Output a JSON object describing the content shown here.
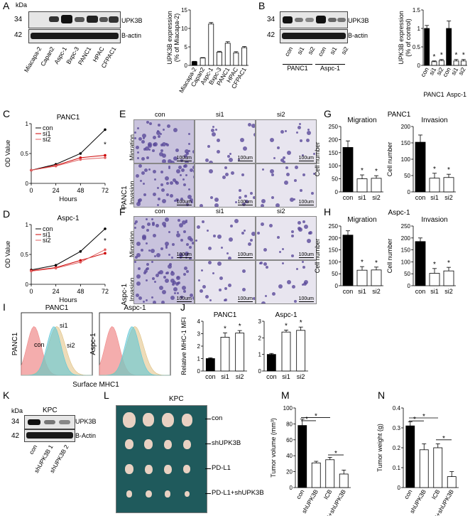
{
  "panels": {
    "A": "A",
    "B": "B",
    "C": "C",
    "D": "D",
    "E": "E",
    "F": "F",
    "G": "G",
    "H": "H",
    "I": "I",
    "J": "J",
    "K": "K",
    "L": "L",
    "M": "M",
    "N": "N"
  },
  "blotA": {
    "kda": "kDa",
    "m34": "34",
    "m42": "42",
    "p1": "UPK3B",
    "p2": "B-actin",
    "lanes": [
      "Miacapa-2",
      "Capan2",
      "Aspc-1",
      "Bxpc-3",
      "PANC1",
      "HPAC",
      "CFPAC1"
    ]
  },
  "blotB": {
    "m34": "34",
    "m42": "42",
    "p1": "UPK3B",
    "p2": "B-actin",
    "lanes": [
      "con",
      "si1",
      "si2",
      "con",
      "si1",
      "si2"
    ],
    "groups": [
      "PANC1",
      "Aspc-1"
    ]
  },
  "blotK": {
    "kda": "kDa",
    "title": "KPC",
    "m34": "34",
    "m42": "42",
    "p1": "UPK3B",
    "p2": "B-Actin",
    "lanes": [
      "con",
      "shUPK3B 1",
      "shUPK3B 2"
    ]
  },
  "micro": {
    "cols": [
      "con",
      "si1",
      "si2"
    ],
    "rowsE": [
      "Migration",
      "Invasion"
    ],
    "cellE": "PANC1",
    "cellF": "Aspc-1",
    "scale": "100um"
  },
  "flow": {
    "titles": [
      "PANC1",
      "Aspc-1"
    ],
    "ylabels": [
      "PANC1",
      "Aspc-1"
    ],
    "xlabel": "Surface MHC1",
    "tags": [
      "con",
      "si1",
      "si2"
    ]
  },
  "photo": {
    "title": "KPC",
    "rows": [
      "con",
      "shUPK3B",
      "PD-L1",
      "PD-L1+shUPK3B"
    ]
  },
  "chart_data": [
    {
      "id": "A",
      "type": "bar",
      "categories": [
        "Miacapa-2",
        "Capan2",
        "Aspc-1",
        "Bxpc-3",
        "PANC1",
        "HPAC",
        "CFPAC1"
      ],
      "values": [
        1,
        2,
        11.2,
        3.6,
        6,
        3.4,
        4.8
      ],
      "errors": [
        0.1,
        0.1,
        0.4,
        0.2,
        0.4,
        0.3,
        0.3
      ],
      "ylabel": "UPK3B expression\n(% of Miacapa-2)",
      "ylim": [
        0,
        15
      ],
      "yticks": [
        0,
        5,
        10,
        15
      ],
      "colors": [
        "#000",
        "#fff",
        "#fff",
        "#fff",
        "#fff",
        "#fff",
        "#fff"
      ]
    },
    {
      "id": "B",
      "type": "bar",
      "categories": [
        "con",
        "si1",
        "si2",
        "con",
        "si1",
        "si2"
      ],
      "groups": [
        "PANC1",
        "Aspc-1"
      ],
      "values": [
        1,
        0.1,
        0.13,
        1,
        0.12,
        0.12
      ],
      "errors": [
        0.08,
        0.02,
        0.03,
        0.2,
        0.04,
        0.04
      ],
      "ylabel": "UPK3B expression\n(% of control)",
      "ylim": [
        0,
        1.5
      ],
      "yticks": [
        0.0,
        0.5,
        1.0,
        1.5
      ],
      "stars": [
        false,
        true,
        true,
        false,
        true,
        true
      ],
      "colors": [
        "#000",
        "#fff",
        "#fff",
        "#000",
        "#fff",
        "#fff"
      ]
    },
    {
      "id": "C",
      "type": "line",
      "title": "PANC1",
      "x": [
        0,
        24,
        48,
        72
      ],
      "xlabel": "Hours",
      "ylabel": "OD Value",
      "ylim": [
        0,
        1
      ],
      "yticks": [
        0,
        0.5,
        1
      ],
      "series": [
        {
          "name": "con",
          "values": [
            0.22,
            0.32,
            0.5,
            0.9
          ]
        },
        {
          "name": "si1",
          "values": [
            0.22,
            0.3,
            0.43,
            0.47
          ]
        },
        {
          "name": "si2",
          "values": [
            0.22,
            0.29,
            0.4,
            0.43
          ]
        }
      ],
      "annotation": "*"
    },
    {
      "id": "D",
      "type": "line",
      "title": "Aspc-1",
      "x": [
        0,
        24,
        48,
        72
      ],
      "xlabel": "Hours",
      "ylabel": "OD Value",
      "ylim": [
        0,
        1
      ],
      "yticks": [
        0,
        0.5,
        1
      ],
      "series": [
        {
          "name": "con",
          "values": [
            0.24,
            0.32,
            0.55,
            0.93
          ]
        },
        {
          "name": "si1",
          "values": [
            0.23,
            0.28,
            0.4,
            0.52
          ]
        },
        {
          "name": "si2",
          "values": [
            0.22,
            0.27,
            0.37,
            0.58
          ]
        }
      ],
      "annotation": "*"
    },
    {
      "id": "G1",
      "type": "bar",
      "group": "PANC1",
      "title": "Migration",
      "categories": [
        "con",
        "si1",
        "si2"
      ],
      "values": [
        170,
        50,
        52
      ],
      "errors": [
        25,
        15,
        10
      ],
      "ylabel": "Cell number",
      "ylim": [
        0,
        250
      ],
      "yticks": [
        0,
        50,
        100,
        150,
        200,
        250
      ],
      "stars": [
        false,
        true,
        true
      ]
    },
    {
      "id": "G2",
      "type": "bar",
      "group": "PANC1",
      "title": "Invasion",
      "categories": [
        "con",
        "si1",
        "si2"
      ],
      "values": [
        152,
        42,
        44
      ],
      "errors": [
        22,
        15,
        10
      ],
      "ylabel": "Cell number",
      "ylim": [
        0,
        200
      ],
      "yticks": [
        0,
        50,
        100,
        150,
        200
      ],
      "stars": [
        false,
        true,
        true
      ]
    },
    {
      "id": "H1",
      "type": "bar",
      "group": "Aspc-1",
      "title": "Migration",
      "categories": [
        "con",
        "si1",
        "si2"
      ],
      "values": [
        212,
        65,
        66
      ],
      "errors": [
        18,
        15,
        12
      ],
      "ylabel": "Cell number",
      "ylim": [
        0,
        250
      ],
      "yticks": [
        0,
        50,
        100,
        150,
        200,
        250
      ],
      "stars": [
        false,
        true,
        true
      ]
    },
    {
      "id": "H2",
      "type": "bar",
      "group": "Aspc-1",
      "title": "Invasion",
      "categories": [
        "con",
        "si1",
        "si2"
      ],
      "values": [
        185,
        52,
        62
      ],
      "errors": [
        15,
        20,
        15
      ],
      "ylabel": "Cell number",
      "ylim": [
        0,
        250
      ],
      "yticks": [
        0,
        50,
        100,
        150,
        200,
        250
      ],
      "stars": [
        false,
        true,
        true
      ]
    },
    {
      "id": "J1",
      "type": "bar",
      "title": "PANC1",
      "categories": [
        "con",
        "si1",
        "si2"
      ],
      "values": [
        1,
        2.72,
        3.05
      ],
      "errors": [
        0.06,
        0.35,
        0.2
      ],
      "ylabel": "Relative MHC-1 MFI",
      "ylim": [
        0,
        4
      ],
      "yticks": [
        0,
        1,
        2,
        3,
        4
      ],
      "stars": [
        false,
        true,
        true
      ]
    },
    {
      "id": "J2",
      "type": "bar",
      "title": "Aspc-1",
      "categories": [
        "con",
        "si1",
        "si2"
      ],
      "values": [
        1,
        2.35,
        2.45
      ],
      "errors": [
        0.06,
        0.12,
        0.2
      ],
      "ylim": [
        0,
        3
      ],
      "yticks": [
        0,
        1,
        2,
        3
      ],
      "stars": [
        false,
        true,
        true
      ]
    },
    {
      "id": "M",
      "type": "bar",
      "categories": [
        "con",
        "shUPK3B",
        "ICB",
        "ICB+shUPK3B"
      ],
      "values": [
        78,
        31,
        35,
        17
      ],
      "errors": [
        8,
        2,
        3,
        5
      ],
      "ylabel": "Tumor volume (mm³)",
      "ylim": [
        0,
        100
      ],
      "yticks": [
        0,
        20,
        40,
        60,
        80,
        100
      ],
      "annotation": "*"
    },
    {
      "id": "N",
      "type": "bar",
      "categories": [
        "con",
        "shUPK3B",
        "ICB",
        "ICB+shUPK3B"
      ],
      "values": [
        0.31,
        0.19,
        0.2,
        0.055
      ],
      "errors": [
        0.02,
        0.03,
        0.02,
        0.025
      ],
      "ylabel": "Tumor weight (g)",
      "ylim": [
        0,
        0.4
      ],
      "yticks": [
        0.0,
        0.1,
        0.2,
        0.3,
        0.4
      ],
      "annotation": "*"
    }
  ]
}
